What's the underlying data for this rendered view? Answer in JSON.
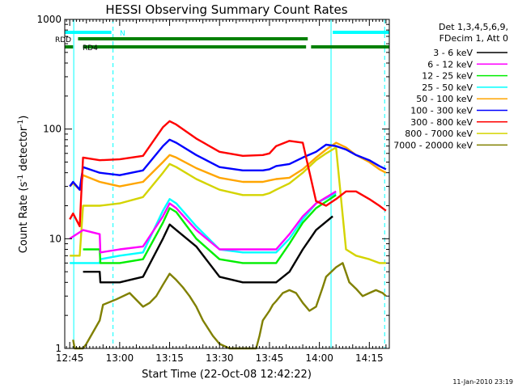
{
  "chart_data": {
    "type": "line",
    "title": "HESSI Observing Summary Count Rates",
    "xlabel": "Start Time (22-Oct-08 12:42:22)",
    "ylabel": "Count Rate (s",
    "ylabel_sup1": "-1",
    "ylabel_mid": " detector",
    "ylabel_sup2": "-1",
    "ylabel_end": ")",
    "yscale": "log",
    "ylim": [
      1,
      1000
    ],
    "xlim_minutes": [
      -1.5,
      96
    ],
    "x_ticks": [
      {
        "label": "12:45",
        "min": 0
      },
      {
        "label": "13:00",
        "min": 15
      },
      {
        "label": "13:15",
        "min": 30
      },
      {
        "label": "13:30",
        "min": 45
      },
      {
        "label": "13:45",
        "min": 60
      },
      {
        "label": "14:00",
        "min": 75
      },
      {
        "label": "14:15",
        "min": 90
      }
    ],
    "y_ticks": [
      {
        "label": "1",
        "v": 1
      },
      {
        "label": "10",
        "v": 10
      },
      {
        "label": "100",
        "v": 100
      },
      {
        "label": "1000",
        "v": 1000
      }
    ],
    "legend_header": [
      "Det 1,3,4,5,6,9,",
      "FDecim 1, Att 0"
    ],
    "legend_placement": "right",
    "series": [
      {
        "name": "3 - 6 keV",
        "color": "#000000",
        "mins": [
          4,
          9,
          9.2,
          15,
          22,
          28,
          30,
          32,
          38,
          45,
          52,
          60,
          62,
          66,
          70,
          74,
          79
        ],
        "values": [
          5,
          5,
          4,
          4,
          4.5,
          10,
          13.5,
          12,
          8.5,
          4.5,
          4,
          4,
          4,
          5,
          8,
          12,
          16
        ]
      },
      {
        "name": "6 - 12 keV",
        "color": "#ff00ff",
        "mins": [
          0,
          4,
          9,
          9.2,
          15,
          22,
          28,
          30,
          32,
          38,
          45,
          52,
          60,
          62,
          66,
          70,
          74,
          80
        ],
        "values": [
          10,
          12,
          11,
          7.5,
          8,
          8.5,
          16,
          21,
          19,
          12,
          8,
          8,
          8,
          8,
          11,
          16,
          21,
          27
        ]
      },
      {
        "name": "12 - 25 keV",
        "color": "#00ee00",
        "mins": [
          4,
          9,
          9.2,
          15,
          22,
          28,
          30,
          32,
          38,
          45,
          52,
          60,
          62,
          66,
          70,
          74,
          80
        ],
        "values": [
          8,
          8,
          6,
          6,
          6.5,
          14,
          19,
          17.5,
          10,
          6.5,
          6,
          6,
          6,
          9,
          14,
          19,
          25
        ]
      },
      {
        "name": "25 - 50 keV",
        "color": "#00ffff",
        "mins": [
          0,
          4,
          9,
          9.2,
          15,
          22,
          28,
          30,
          32,
          38,
          45,
          52,
          60,
          62,
          66,
          70,
          74,
          80
        ],
        "values": [
          6,
          6,
          6,
          6.5,
          7,
          7.5,
          18,
          23,
          21,
          13,
          8,
          7.5,
          7.5,
          7.5,
          10,
          15,
          21,
          26
        ]
      },
      {
        "name": "50 - 100 keV",
        "color": "#ffa500",
        "mins": [
          0,
          1,
          3,
          4,
          9,
          15,
          22,
          28,
          30,
          32,
          38,
          45,
          52,
          58,
          60,
          62,
          66,
          70,
          74,
          77,
          80,
          83,
          86,
          90,
          93,
          95
        ],
        "values": [
          30,
          32,
          28,
          38,
          33,
          30,
          33,
          50,
          58,
          55,
          44,
          36,
          33,
          33,
          34,
          35,
          36,
          43,
          55,
          65,
          75,
          68,
          58,
          50,
          43,
          40
        ]
      },
      {
        "name": "100 - 300 keV",
        "color": "#0000ff",
        "mins": [
          0,
          1,
          3,
          4,
          9,
          15,
          22,
          28,
          30,
          32,
          38,
          45,
          52,
          58,
          60,
          62,
          66,
          70,
          74,
          77,
          80,
          83,
          86,
          90,
          93,
          95
        ],
        "values": [
          30,
          33,
          28,
          45,
          40,
          38,
          42,
          70,
          80,
          75,
          58,
          45,
          42,
          42,
          43,
          46,
          48,
          55,
          62,
          72,
          70,
          65,
          58,
          52,
          46,
          43
        ]
      },
      {
        "name": "300 - 800 keV",
        "color": "#ff0000",
        "mins": [
          0,
          1,
          3,
          4,
          9,
          15,
          22,
          28,
          30,
          32,
          38,
          45,
          52,
          58,
          60,
          62,
          66,
          70,
          74,
          77,
          80,
          83,
          86,
          90,
          93,
          95
        ],
        "values": [
          15,
          17,
          13,
          55,
          52,
          53,
          57,
          104,
          118,
          110,
          82,
          62,
          57,
          58,
          60,
          70,
          78,
          75,
          22,
          20,
          23,
          27,
          27,
          23,
          20,
          18
        ]
      },
      {
        "name": "800 - 7000 keV",
        "color": "#d4d400",
        "mins": [
          0,
          1,
          3,
          4,
          9,
          15,
          22,
          28,
          30,
          32,
          38,
          45,
          52,
          58,
          60,
          62,
          66,
          70,
          74,
          77,
          80,
          83,
          86,
          90,
          93,
          95
        ],
        "values": [
          7,
          7,
          7,
          20,
          20,
          21,
          24,
          40,
          48,
          45,
          35,
          28,
          25,
          25,
          26,
          28,
          32,
          40,
          52,
          60,
          68,
          8,
          7,
          6.5,
          6,
          6
        ]
      },
      {
        "name": "7000 - 20000 keV",
        "color": "#808000",
        "mins": [
          1,
          1.5,
          3,
          4,
          5,
          9,
          10,
          14,
          18,
          22,
          24,
          26,
          28,
          30,
          32,
          34,
          36,
          38,
          40,
          43,
          45,
          48,
          52,
          56,
          57,
          58,
          60,
          61,
          62,
          64,
          66,
          68,
          70,
          72,
          74,
          76,
          77,
          80,
          82,
          84,
          86,
          88,
          90,
          92,
          94,
          95
        ],
        "values": [
          1.2,
          1,
          1,
          1,
          1.1,
          1.8,
          2.5,
          2.8,
          3.2,
          2.4,
          2.6,
          3.0,
          3.8,
          4.8,
          4.2,
          3.6,
          3.0,
          2.4,
          1.8,
          1.3,
          1.1,
          1.0,
          1.0,
          1.0,
          1.3,
          1.8,
          2.2,
          2.5,
          2.7,
          3.2,
          3.4,
          3.2,
          2.6,
          2.2,
          2.4,
          3.6,
          4.5,
          5.5,
          6.0,
          4.0,
          3.5,
          3.0,
          3.2,
          3.4,
          3.2,
          3.0
        ]
      }
    ],
    "annotations": [
      {
        "label": "RDD"
      },
      {
        "label": "N"
      },
      {
        "label": "RD4"
      }
    ],
    "footer_date": "11-Jan-2010 23:19"
  }
}
